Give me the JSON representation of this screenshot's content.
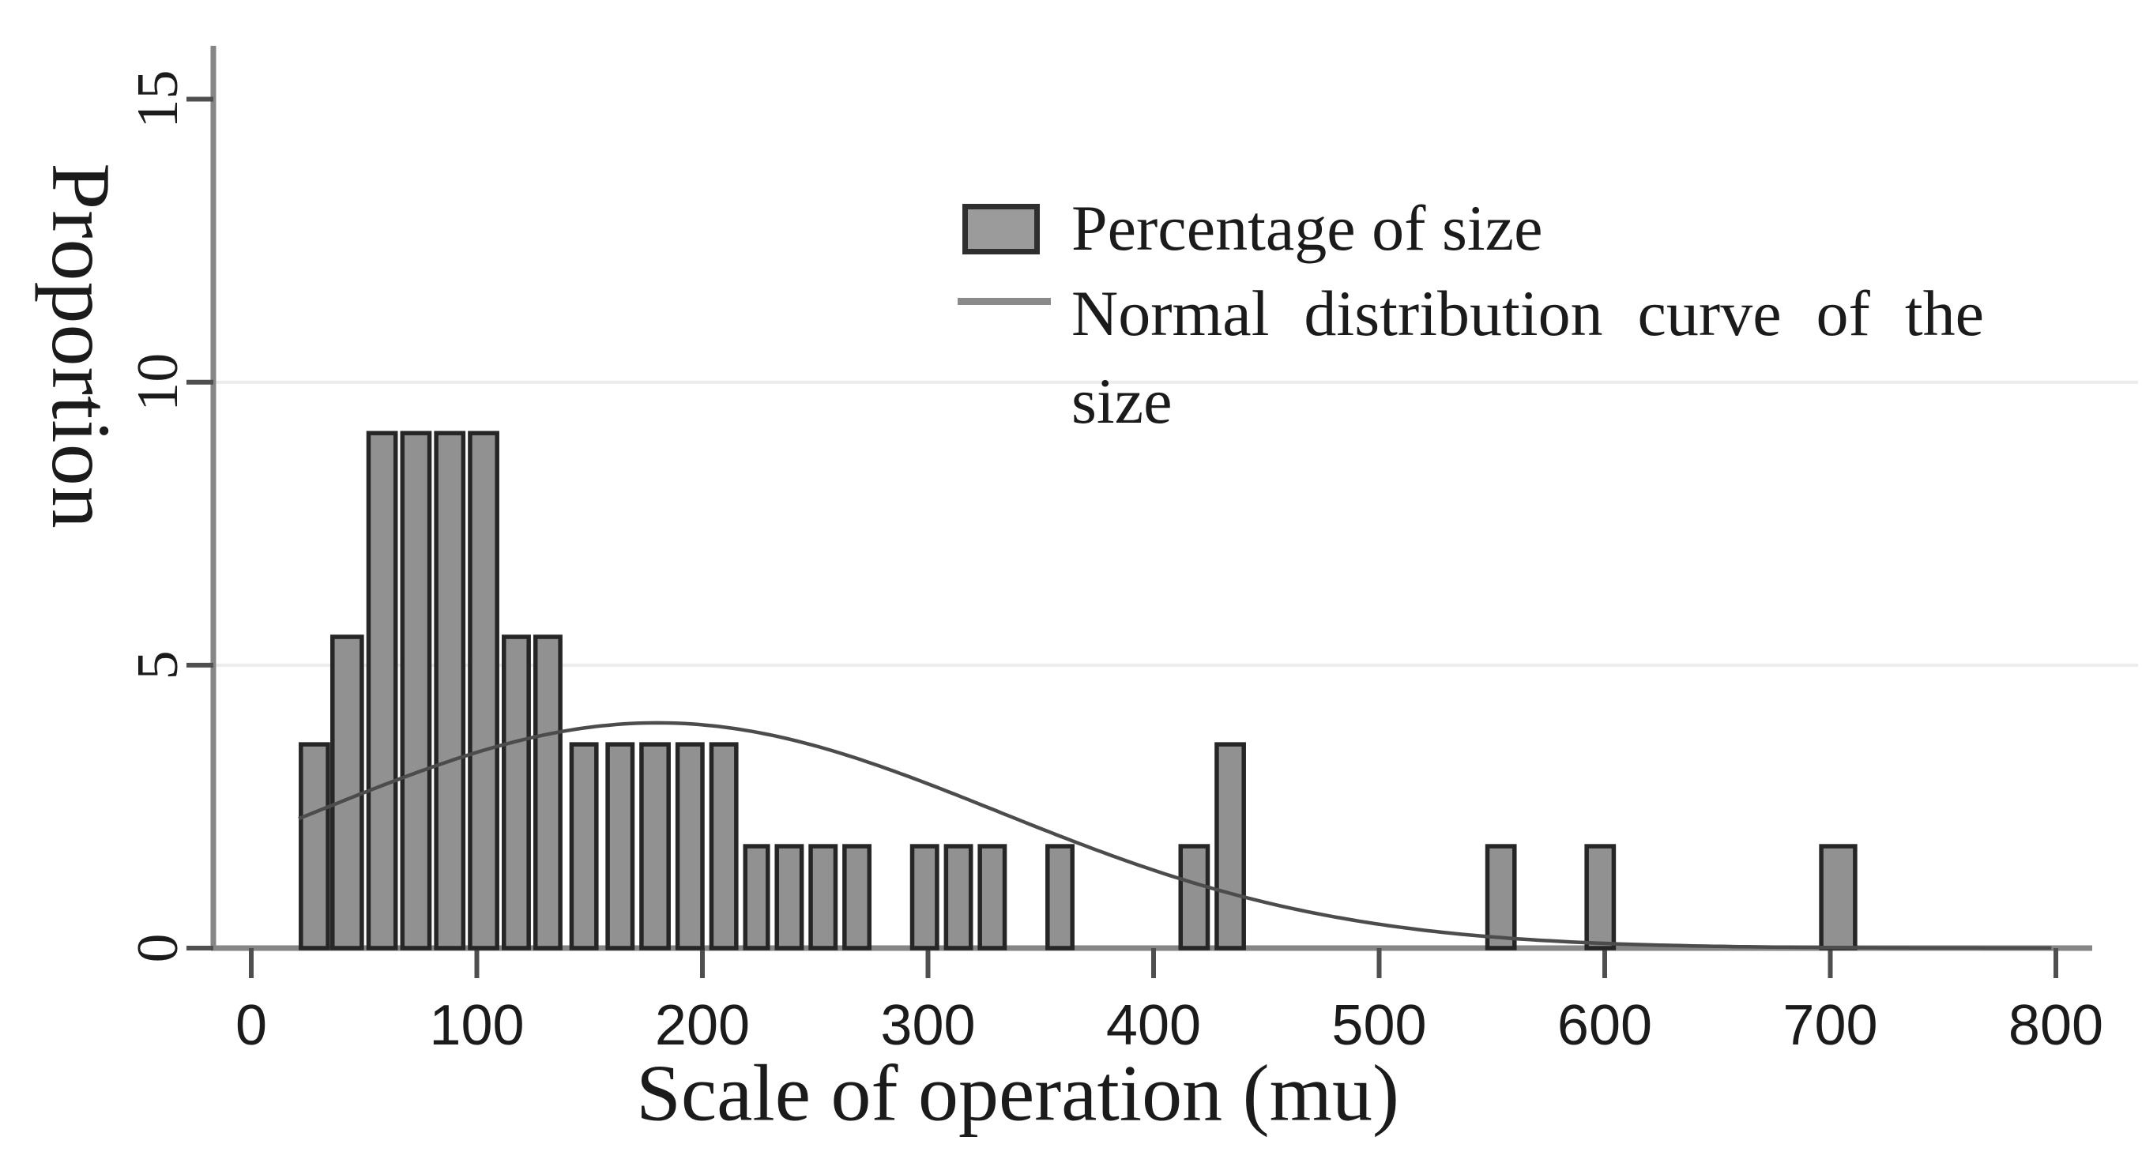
{
  "chart_data": {
    "type": "bar",
    "subtype": "histogram-with-normal-curve",
    "title": "",
    "xlabel": "Scale of operation (mu)",
    "ylabel": "Proportion",
    "x_ticks": [
      0,
      100,
      200,
      300,
      400,
      500,
      600,
      700,
      800
    ],
    "y_ticks": [
      0,
      5,
      10,
      15
    ],
    "grid_y": [
      5,
      10
    ],
    "xlim": [
      -17,
      830
    ],
    "ylim": [
      0,
      15.9
    ],
    "legend_position": "inside-top-right",
    "legend": {
      "bar_label": "Percentage of size",
      "curve_label": "Normal distribution curve of the size"
    },
    "series": [
      {
        "name": "Percentage of size",
        "kind": "bars",
        "bar_unit_pct": 1.82,
        "bars": [
          [
            22,
            34,
            3.6
          ],
          [
            36,
            49,
            5.5
          ],
          [
            52,
            64,
            9.1
          ],
          [
            67,
            79,
            9.1
          ],
          [
            82,
            94,
            9.1
          ],
          [
            97,
            109,
            9.1
          ],
          [
            112,
            123,
            5.5
          ],
          [
            126,
            137,
            5.5
          ],
          [
            142,
            153,
            3.6
          ],
          [
            158,
            169,
            3.6
          ],
          [
            173,
            185,
            3.6
          ],
          [
            189,
            200,
            3.6
          ],
          [
            204,
            215,
            3.6
          ],
          [
            219,
            229,
            1.8
          ],
          [
            233,
            244,
            1.8
          ],
          [
            248,
            259,
            1.8
          ],
          [
            263,
            274,
            1.8
          ],
          [
            293,
            304,
            1.8
          ],
          [
            308,
            319,
            1.8
          ],
          [
            323,
            334,
            1.8
          ],
          [
            353,
            364,
            1.8
          ],
          [
            412,
            424,
            1.8
          ],
          [
            428,
            440,
            3.6
          ],
          [
            548,
            560,
            1.8
          ],
          [
            592,
            604,
            1.8
          ],
          [
            696,
            711,
            1.8
          ]
        ]
      },
      {
        "name": "Normal distribution curve of the size",
        "kind": "gaussian-curve",
        "mean": 180,
        "sd": 151,
        "peak": 3.98,
        "x_start": 21,
        "x_end": 800
      }
    ],
    "colors": {
      "bar_fill": "#919191",
      "bar_stroke": "#262626",
      "curve": "#4c4c4c",
      "axis": "#868686",
      "tick": "#4f4f4f",
      "grid": "#ececec",
      "text": "#1b1b1b",
      "background": "#ffffff"
    }
  }
}
